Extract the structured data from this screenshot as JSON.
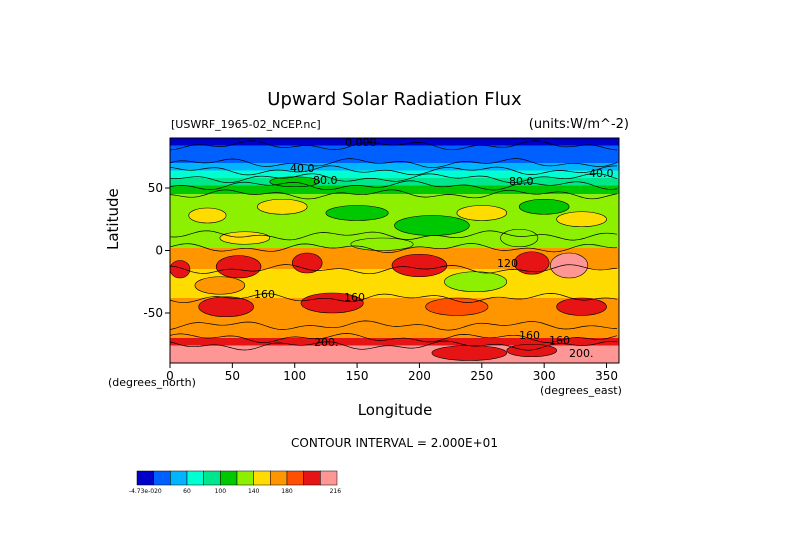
{
  "chart_data": {
    "type": "heatmap",
    "title": "Upward Solar Radiation Flux",
    "dataset_label": "[USWRF_1965-02_NCEP.nc]",
    "units_label": "(units:W/m^-2)",
    "xlabel": "Longitude",
    "ylabel": "Latitude",
    "x_unit_note": "(degrees_east)",
    "y_unit_note": "(degrees_north)",
    "xlim": [
      0,
      360
    ],
    "ylim": [
      -90,
      90
    ],
    "x_ticks": [
      0,
      50,
      100,
      150,
      200,
      250,
      300,
      350
    ],
    "y_ticks": [
      50,
      0,
      -50
    ],
    "contour_interval_text": "CONTOUR INTERVAL = 2.000E+01",
    "contour_labels": [
      "0.000",
      "40.0",
      "80.0",
      "80.0",
      "40.0",
      "120",
      "160",
      "160",
      "160",
      "200.",
      "160",
      "200."
    ],
    "colorbar": {
      "colors": [
        "#0000c8",
        "#0060ff",
        "#00b4ff",
        "#00ffd2",
        "#00e68c",
        "#00c800",
        "#8cf000",
        "#ffdc00",
        "#ff9600",
        "#ff5000",
        "#e61414",
        "#ff9696"
      ],
      "labels": [
        "-4.73e-020",
        "60",
        "100",
        "140",
        "180",
        "216"
      ]
    },
    "lat_bands": [
      {
        "lat_from": 90,
        "lat_to": 84,
        "value": 0
      },
      {
        "lat_from": 84,
        "lat_to": 70,
        "value": 20
      },
      {
        "lat_from": 70,
        "lat_to": 64,
        "value": 40
      },
      {
        "lat_from": 64,
        "lat_to": 58,
        "value": 60
      },
      {
        "lat_from": 58,
        "lat_to": 52,
        "value": 80
      },
      {
        "lat_from": 52,
        "lat_to": 45,
        "value": 100
      },
      {
        "lat_from": 45,
        "lat_to": 12,
        "value": 110
      },
      {
        "lat_from": 12,
        "lat_to": 2,
        "value": 120
      },
      {
        "lat_from": 2,
        "lat_to": -15,
        "value": 150
      },
      {
        "lat_from": -15,
        "lat_to": -38,
        "value": 140
      },
      {
        "lat_from": -38,
        "lat_to": -60,
        "value": 160
      },
      {
        "lat_from": -60,
        "lat_to": -70,
        "value": 150
      },
      {
        "lat_from": -70,
        "lat_to": -76,
        "value": 190
      },
      {
        "lat_from": -76,
        "lat_to": -90,
        "value": 216
      }
    ],
    "patches": [
      {
        "lon": 8,
        "lat": -15,
        "rlon": 8,
        "rlat": 7,
        "value": 190
      },
      {
        "lon": 55,
        "lat": -13,
        "rlon": 18,
        "rlat": 9,
        "value": 190
      },
      {
        "lon": 110,
        "lat": -10,
        "rlon": 12,
        "rlat": 8,
        "value": 180
      },
      {
        "lon": 200,
        "lat": -12,
        "rlon": 22,
        "rlat": 9,
        "value": 180
      },
      {
        "lon": 290,
        "lat": -10,
        "rlon": 14,
        "rlat": 9,
        "value": 190
      },
      {
        "lon": 320,
        "lat": -12,
        "rlon": 15,
        "rlat": 10,
        "value": 200
      },
      {
        "lon": 130,
        "lat": -42,
        "rlon": 25,
        "rlat": 8,
        "value": 180
      },
      {
        "lon": 45,
        "lat": -45,
        "rlon": 22,
        "rlat": 8,
        "value": 180
      },
      {
        "lon": 230,
        "lat": -45,
        "rlon": 25,
        "rlat": 7,
        "value": 170
      },
      {
        "lon": 330,
        "lat": -45,
        "rlon": 20,
        "rlat": 7,
        "value": 180
      },
      {
        "lon": 240,
        "lat": -82,
        "rlon": 30,
        "rlat": 6,
        "value": 190
      },
      {
        "lon": 290,
        "lat": -80,
        "rlon": 20,
        "rlat": 5,
        "value": 190
      },
      {
        "lon": 90,
        "lat": 35,
        "rlon": 20,
        "rlat": 6,
        "value": 140
      },
      {
        "lon": 30,
        "lat": 28,
        "rlon": 15,
        "rlat": 6,
        "value": 140
      },
      {
        "lon": 250,
        "lat": 30,
        "rlon": 20,
        "rlat": 6,
        "value": 140
      },
      {
        "lon": 210,
        "lat": 20,
        "rlon": 30,
        "rlat": 8,
        "value": 100
      },
      {
        "lon": 150,
        "lat": 30,
        "rlon": 25,
        "rlat": 6,
        "value": 100
      },
      {
        "lon": 300,
        "lat": 35,
        "rlon": 20,
        "rlat": 6,
        "value": 100
      },
      {
        "lon": 330,
        "lat": 25,
        "rlon": 20,
        "rlat": 6,
        "value": 140
      },
      {
        "lon": 280,
        "lat": 10,
        "rlon": 15,
        "rlat": 7,
        "value": 110
      },
      {
        "lon": 170,
        "lat": 5,
        "rlon": 25,
        "rlat": 5,
        "value": 110
      },
      {
        "lon": 100,
        "lat": 55,
        "rlon": 20,
        "rlat": 4,
        "value": 100
      },
      {
        "lon": 60,
        "lat": 10,
        "rlon": 20,
        "rlat": 5,
        "value": 140
      },
      {
        "lon": 245,
        "lat": -25,
        "rlon": 25,
        "rlat": 8,
        "value": 120
      },
      {
        "lon": 40,
        "lat": -28,
        "rlon": 20,
        "rlat": 7,
        "value": 160
      }
    ]
  }
}
